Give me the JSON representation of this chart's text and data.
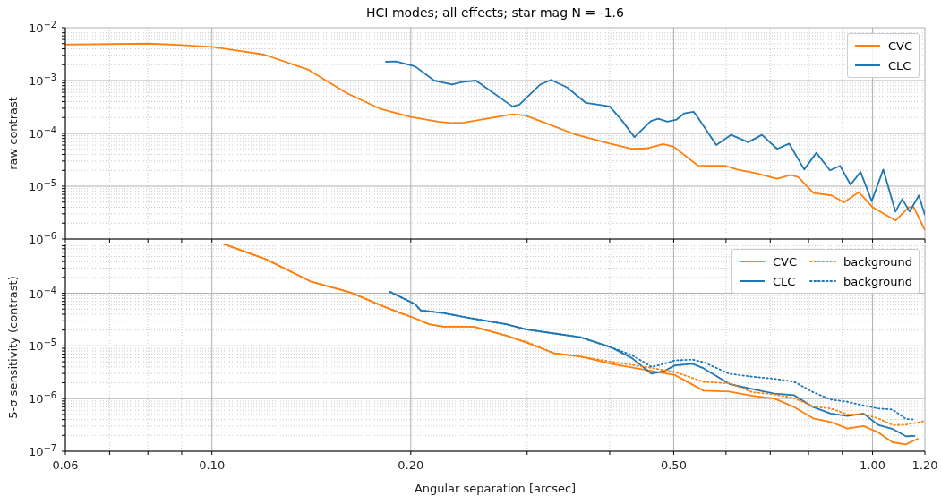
{
  "chart_data": [
    {
      "type": "line",
      "title": "HCI modes; all effects; star mag N = -1.6",
      "ylabel": "raw contrast",
      "log": "xy",
      "grid": true,
      "legend": "top right",
      "tick_labels": "y",
      "line_style": "solid",
      "xlim": [
        0.06,
        1.2
      ],
      "ylim": [
        1e-06,
        0.01
      ],
      "yticks": [
        {
          "value": 1e-06,
          "label": "10$^{−6}$"
        },
        {
          "value": 2e-06,
          "label": null
        },
        {
          "value": 3e-06,
          "label": null
        },
        {
          "value": 4e-06,
          "label": null
        },
        {
          "value": 5e-06,
          "label": null
        },
        {
          "value": 6e-06,
          "label": null
        },
        {
          "value": 7e-06,
          "label": null
        },
        {
          "value": 8e-06,
          "label": null
        },
        {
          "value": 9e-06,
          "label": null
        },
        {
          "value": 1e-05,
          "label": "10$^{−5}$"
        },
        {
          "value": 2e-05,
          "label": null
        },
        {
          "value": 3e-05,
          "label": null
        },
        {
          "value": 4e-05,
          "label": null
        },
        {
          "value": 5e-05,
          "label": null
        },
        {
          "value": 6e-05,
          "label": null
        },
        {
          "value": 7e-05,
          "label": null
        },
        {
          "value": 8e-05,
          "label": null
        },
        {
          "value": 9e-05,
          "label": null
        },
        {
          "value": 0.0001,
          "label": "10$^{−4}$"
        },
        {
          "value": 0.0002,
          "label": null
        },
        {
          "value": 0.0003,
          "label": null
        },
        {
          "value": 0.0004,
          "label": null
        },
        {
          "value": 0.0005,
          "label": null
        },
        {
          "value": 0.0006,
          "label": null
        },
        {
          "value": 0.0007,
          "label": null
        },
        {
          "value": 0.0008,
          "label": null
        },
        {
          "value": 0.0009,
          "label": null
        },
        {
          "value": 0.001,
          "label": "10$^{−3}$"
        },
        {
          "value": 0.002,
          "label": null
        },
        {
          "value": 0.003,
          "label": null
        },
        {
          "value": 0.004,
          "label": null
        },
        {
          "value": 0.005,
          "label": null
        },
        {
          "value": 0.006,
          "label": null
        },
        {
          "value": 0.007,
          "label": null
        },
        {
          "value": 0.008,
          "label": null
        },
        {
          "value": 0.009,
          "label": null
        },
        {
          "value": 0.01,
          "label": "10$^{−2}$"
        }
      ],
      "series": [
        {
          "name": "CVC",
          "color": "#ff7f0e",
          "x": [
            0.06,
            0.08,
            0.09,
            0.1,
            0.12,
            0.14,
            0.16,
            0.18,
            0.2,
            0.22,
            0.23,
            0.241,
            0.285,
            0.298,
            0.327,
            0.353,
            0.4,
            0.433,
            0.455,
            0.482,
            0.5,
            0.544,
            0.599,
            0.624,
            0.665,
            0.717,
            0.752,
            0.772,
            0.814,
            0.867,
            0.905,
            0.953,
            1.0,
            1.083,
            1.135,
            1.154,
            1.2
          ],
          "values": [
            0.0048,
            0.005,
            0.0047,
            0.00435,
            0.0031,
            0.0016,
            0.00058,
            0.00029,
            0.000204,
            0.000167,
            0.000157,
            0.00016,
            0.00023,
            0.00022,
            0.000141,
            9.8e-05,
            6.4e-05,
            5.1e-05,
            5.2e-05,
            6.3e-05,
            5.6e-05,
            2.46e-05,
            2.43e-05,
            2.07e-05,
            1.77e-05,
            1.39e-05,
            1.63e-05,
            1.49e-05,
            7.4e-06,
            6.7e-06,
            4.96e-06,
            7.7e-06,
            4e-06,
            2.24e-06,
            4e-06,
            4e-06,
            1.47e-06
          ]
        },
        {
          "name": "CLC",
          "color": "#1f77b4",
          "x": [
            0.183,
            0.19,
            0.203,
            0.217,
            0.231,
            0.239,
            0.251,
            0.285,
            0.292,
            0.314,
            0.326,
            0.345,
            0.368,
            0.384,
            0.4,
            0.418,
            0.436,
            0.462,
            0.474,
            0.489,
            0.505,
            0.519,
            0.536,
            0.544,
            0.58,
            0.611,
            0.648,
            0.68,
            0.717,
            0.748,
            0.788,
            0.822,
            0.862,
            0.893,
            0.926,
            0.959,
            0.997,
            1.038,
            1.083,
            1.109,
            1.138,
            1.175,
            1.2
          ],
          "values": [
            0.00227,
            0.0023,
            0.00186,
            0.001,
            0.00084,
            0.00094,
            0.001,
            0.000324,
            0.00035,
            0.00084,
            0.00103,
            0.00074,
            0.00038,
            0.00035,
            0.000324,
            0.000172,
            8.5e-05,
            0.000172,
            0.00019,
            0.000167,
            0.000183,
            0.00024,
            0.000256,
            0.0002,
            6e-05,
            9.4e-05,
            6.8e-05,
            9.4e-05,
            5.1e-05,
            6.4e-05,
            2.07e-05,
            4.3e-05,
            2e-05,
            2.43e-05,
            1.07e-05,
            1.86e-05,
            5.2e-06,
            2.07e-05,
            3.3e-06,
            5.7e-06,
            3.3e-06,
            6.7e-06,
            2.84e-06
          ]
        }
      ]
    },
    {
      "type": "line",
      "xlabel": "Angular separation [arcsec]",
      "ylabel": "5-σ sensitivity (contrast)",
      "log": "xy",
      "grid": true,
      "legend": "top right",
      "line_style": "solid",
      "xlim": [
        0.06,
        1.2
      ],
      "xticks": [
        {
          "value": 0.06,
          "label": "0.06"
        },
        {
          "value": 0.07,
          "label": null
        },
        {
          "value": 0.08,
          "label": null
        },
        {
          "value": 0.09,
          "label": null
        },
        {
          "value": 0.1,
          "label": "0.10"
        },
        {
          "value": 0.2,
          "label": "0.20"
        },
        {
          "value": 0.3,
          "label": null
        },
        {
          "value": 0.4,
          "label": null
        },
        {
          "value": 0.5,
          "label": "0.50"
        },
        {
          "value": 0.6,
          "label": null
        },
        {
          "value": 0.7,
          "label": null
        },
        {
          "value": 0.8,
          "label": null
        },
        {
          "value": 0.9,
          "label": null
        },
        {
          "value": 1.0,
          "label": "1.00"
        },
        {
          "value": 1.2,
          "label": "1.20"
        }
      ],
      "ylim": [
        1e-07,
        0.00088
      ],
      "yticks": [
        {
          "value": 1e-07,
          "label": "10$^{−7}$"
        },
        {
          "value": 2e-07,
          "label": null
        },
        {
          "value": 3e-07,
          "label": null
        },
        {
          "value": 4e-07,
          "label": null
        },
        {
          "value": 5e-07,
          "label": null
        },
        {
          "value": 6e-07,
          "label": null
        },
        {
          "value": 7e-07,
          "label": null
        },
        {
          "value": 8e-07,
          "label": null
        },
        {
          "value": 9e-07,
          "label": null
        },
        {
          "value": 1e-06,
          "label": "10$^{−6}$"
        },
        {
          "value": 2e-06,
          "label": null
        },
        {
          "value": 3e-06,
          "label": null
        },
        {
          "value": 4e-06,
          "label": null
        },
        {
          "value": 5e-06,
          "label": null
        },
        {
          "value": 6e-06,
          "label": null
        },
        {
          "value": 7e-06,
          "label": null
        },
        {
          "value": 8e-06,
          "label": null
        },
        {
          "value": 9e-06,
          "label": null
        },
        {
          "value": 1e-05,
          "label": "10$^{−5}$"
        },
        {
          "value": 2e-05,
          "label": null
        },
        {
          "value": 3e-05,
          "label": null
        },
        {
          "value": 4e-05,
          "label": null
        },
        {
          "value": 5e-05,
          "label": null
        },
        {
          "value": 6e-05,
          "label": null
        },
        {
          "value": 7e-05,
          "label": null
        },
        {
          "value": 8e-05,
          "label": null
        },
        {
          "value": 9e-05,
          "label": null
        },
        {
          "value": 0.0001,
          "label": "10$^{−4}$"
        },
        {
          "value": 0.0002,
          "label": null
        },
        {
          "value": 0.0003,
          "label": null
        },
        {
          "value": 0.0004,
          "label": null
        },
        {
          "value": 0.0005,
          "label": null
        },
        {
          "value": 0.0006,
          "label": null
        },
        {
          "value": 0.0007,
          "label": null
        },
        {
          "value": 0.0008,
          "label": null
        }
      ],
      "series": [
        {
          "name": "CVC",
          "color": "#ff7f0e",
          "x": [
            0.104,
            0.121,
            0.141,
            0.162,
            0.182,
            0.193,
            0.203,
            0.213,
            0.224,
            0.249,
            0.279,
            0.3,
            0.33,
            0.361,
            0.402,
            0.453,
            0.502,
            0.555,
            0.607,
            0.658,
            0.71,
            0.761,
            0.813,
            0.864,
            0.916,
            0.969,
            1.02,
            1.072,
            1.123,
            1.173
          ],
          "values": [
            0.00087,
            0.000437,
            0.000168,
            0.000104,
            5.6e-05,
            4.2e-05,
            3.35e-05,
            2.58e-05,
            2.32e-05,
            2.32e-05,
            1.57e-05,
            1.14e-05,
            7.2e-06,
            6.3e-06,
            4.56e-06,
            3.5e-06,
            2.8e-06,
            1.41e-06,
            1.36e-06,
            1.13e-06,
            1e-06,
            6.9e-07,
            4.2e-07,
            3.6e-07,
            2.7e-07,
            3e-07,
            2.28e-07,
            1.48e-07,
            1.35e-07,
            1.75e-07
          ]
        },
        {
          "name": "CLC",
          "color": "#1f77b4",
          "x": [
            0.186,
            0.203,
            0.207,
            0.224,
            0.245,
            0.279,
            0.3,
            0.33,
            0.361,
            0.402,
            0.432,
            0.463,
            0.483,
            0.502,
            0.534,
            0.555,
            0.607,
            0.658,
            0.71,
            0.761,
            0.813,
            0.864,
            0.916,
            0.969,
            1.02,
            1.072,
            1.123,
            1.16
          ],
          "values": [
            0.000107,
            6.2e-05,
            4.75e-05,
            4.2e-05,
            3.4e-05,
            2.58e-05,
            2.04e-05,
            1.72e-05,
            1.47e-05,
            9.4e-06,
            5.9e-06,
            2.96e-06,
            3.3e-06,
            4.27e-06,
            4.56e-06,
            3.75e-06,
            1.9e-06,
            1.51e-06,
            1.24e-06,
            1.16e-06,
            6.9e-07,
            5.2e-07,
            4.66e-07,
            5.2e-07,
            3.15e-07,
            2.66e-07,
            1.92e-07,
            1.96e-07
          ]
        },
        {
          "name": "background",
          "color": "#ff7f0e",
          "line_style": "dotted",
          "x": [
            0.104,
            0.121,
            0.141,
            0.162,
            0.182,
            0.193,
            0.203,
            0.213,
            0.224,
            0.249,
            0.279,
            0.3,
            0.33,
            0.361,
            0.402,
            0.453,
            0.502,
            0.555,
            0.607,
            0.658,
            0.71,
            0.761,
            0.813,
            0.864,
            0.916,
            0.969,
            1.02,
            1.072,
            1.123,
            1.195
          ],
          "values": [
            0.00087,
            0.000437,
            0.000168,
            0.000104,
            5.6e-05,
            4.2e-05,
            3.35e-05,
            2.58e-05,
            2.32e-05,
            2.32e-05,
            1.57e-05,
            1.18e-05,
            7.2e-06,
            6.3e-06,
            5e-06,
            4e-06,
            3.2e-06,
            2.08e-06,
            1.95e-06,
            1.32e-06,
            1.2e-06,
            1.02e-06,
            7.1e-07,
            6.5e-07,
            5e-07,
            5e-07,
            4.2e-07,
            3.15e-07,
            3.2e-07,
            3.7e-07
          ]
        },
        {
          "name": "background",
          "color": "#1f77b4",
          "line_style": "dotted",
          "x": [
            0.186,
            0.203,
            0.207,
            0.224,
            0.245,
            0.279,
            0.3,
            0.33,
            0.361,
            0.402,
            0.432,
            0.463,
            0.483,
            0.502,
            0.534,
            0.555,
            0.607,
            0.658,
            0.71,
            0.761,
            0.813,
            0.864,
            0.916,
            0.969,
            1.02,
            1.072,
            1.123,
            1.16
          ],
          "values": [
            0.000107,
            6.2e-05,
            4.75e-05,
            4.2e-05,
            3.4e-05,
            2.58e-05,
            2.04e-05,
            1.72e-05,
            1.47e-05,
            9.4e-06,
            6.7e-06,
            4e-06,
            4.56e-06,
            5.3e-06,
            5.5e-06,
            4.9e-06,
            2.96e-06,
            2.6e-06,
            2.38e-06,
            2.08e-06,
            1.32e-06,
            9.6e-07,
            8.7e-07,
            7.4e-07,
            6.5e-07,
            6.2e-07,
            4.1e-07,
            4e-07
          ]
        }
      ]
    }
  ]
}
